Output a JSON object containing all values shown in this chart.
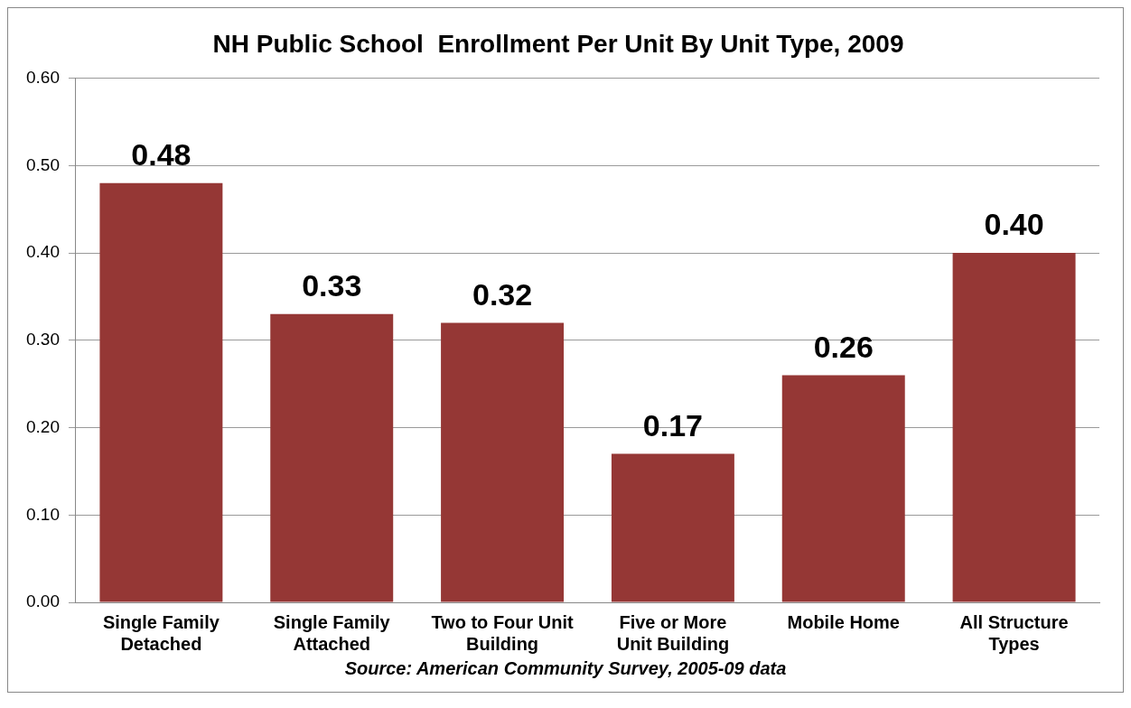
{
  "chart_data": {
    "type": "bar",
    "title": "NH Public School  Enrollment Per Unit By Unit Type, 2009",
    "categories": [
      "Single Family Detached",
      "Single Family Attached",
      "Two to Four Unit Building",
      "Five or More Unit Building",
      "Mobile Home",
      "All Structure Types"
    ],
    "values": [
      0.48,
      0.33,
      0.32,
      0.17,
      0.26,
      0.4
    ],
    "value_labels": [
      "0.48",
      "0.33",
      "0.32",
      "0.17",
      "0.26",
      "0.40"
    ],
    "color": "#953735",
    "ylim": [
      0,
      0.6
    ],
    "yticks": [
      {
        "value": 0,
        "label": "0.00"
      },
      {
        "value": 0.1,
        "label": "0.10"
      },
      {
        "value": 0.2,
        "label": "0.20"
      },
      {
        "value": 0.3,
        "label": "0.30"
      },
      {
        "value": 0.4,
        "label": "0.40"
      },
      {
        "value": 0.5,
        "label": "0.50"
      },
      {
        "value": 0.6,
        "label": "0.60"
      }
    ],
    "grid": "y",
    "legend": false,
    "annotations": [
      "Source: American Community Survey, 2005-09 data"
    ]
  }
}
